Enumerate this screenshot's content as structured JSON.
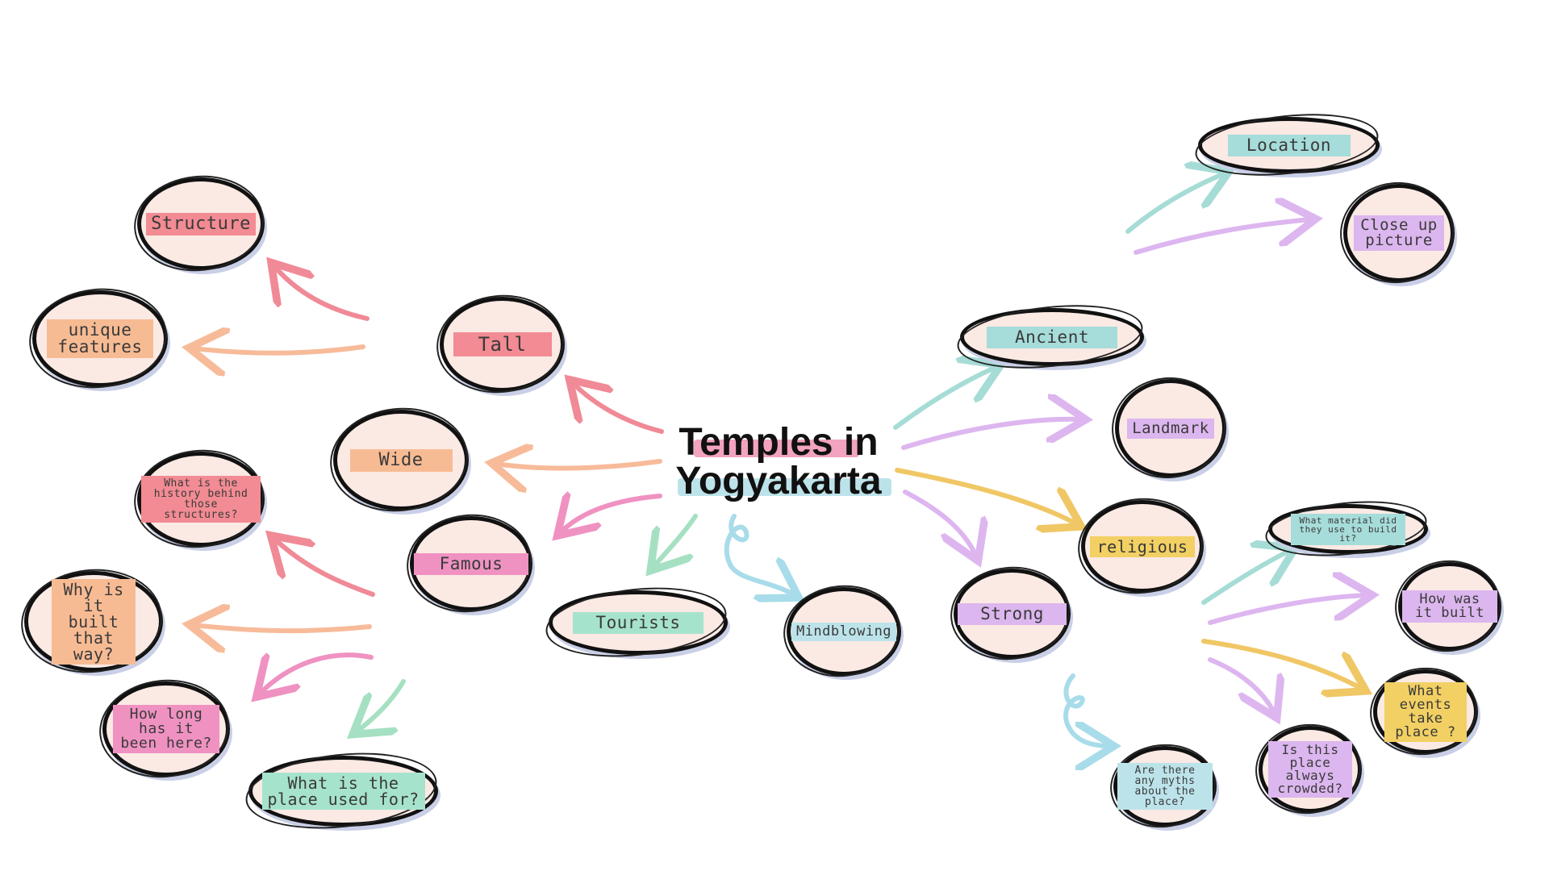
{
  "center": {
    "line1": "Temples in",
    "line2": "Yogyakarta",
    "accent_top": "#f2a3bf",
    "accent_bottom": "#bde3ea"
  },
  "nodes": {
    "structure": {
      "label": "Structure",
      "accent": "#f28b93"
    },
    "unique_features": {
      "label": "unique features",
      "accent": "#f7bb93"
    },
    "tall": {
      "label": "Tall",
      "accent": "#f28b93"
    },
    "wide": {
      "label": "Wide",
      "accent": "#f7bb93"
    },
    "history": {
      "label": "What is the history behind those structures?",
      "accent": "#f28b93"
    },
    "why_built": {
      "label": "Why is it built that way?",
      "accent": "#f7bb93"
    },
    "famous": {
      "label": "Famous",
      "accent": "#ef92c2"
    },
    "how_long": {
      "label": "How long has it been here?",
      "accent": "#ef92c2"
    },
    "used_for": {
      "label": "What is the place used for?",
      "accent": "#a6e3cc"
    },
    "tourists": {
      "label": "Tourists",
      "accent": "#a6e3cc"
    },
    "mindblowing": {
      "label": "Mindblowing",
      "accent": "#bde3ea"
    },
    "ancient": {
      "label": "Ancient",
      "accent": "#a6dcd9"
    },
    "landmark": {
      "label": "Landmark",
      "accent": "#dcb6ee"
    },
    "religious": {
      "label": "religious",
      "accent": "#f2d063"
    },
    "strong": {
      "label": "Strong",
      "accent": "#dcb6ee"
    },
    "location": {
      "label": "Location",
      "accent": "#a6dcd9"
    },
    "close_up": {
      "label": "Close up picture",
      "accent": "#dcb6ee"
    },
    "material": {
      "label": "What material did they use to build it?",
      "accent": "#a6dcd9"
    },
    "how_built": {
      "label": "How was it built",
      "accent": "#dcb6ee"
    },
    "events": {
      "label": "What events take place ?",
      "accent": "#f2d063"
    },
    "crowded": {
      "label": "Is this place always crowded?",
      "accent": "#dcb6ee"
    },
    "myths": {
      "label": "Are there any myths about the place?",
      "accent": "#bde3ea"
    }
  },
  "arrow_colors": {
    "red": "#f08a96",
    "orange": "#f7bb9a",
    "pink": "#ef92c2",
    "green": "#a6e0c2",
    "blue": "#a8dcea",
    "teal": "#a6dcd6",
    "purple": "#ddb6f0",
    "yellow": "#f0c765"
  }
}
